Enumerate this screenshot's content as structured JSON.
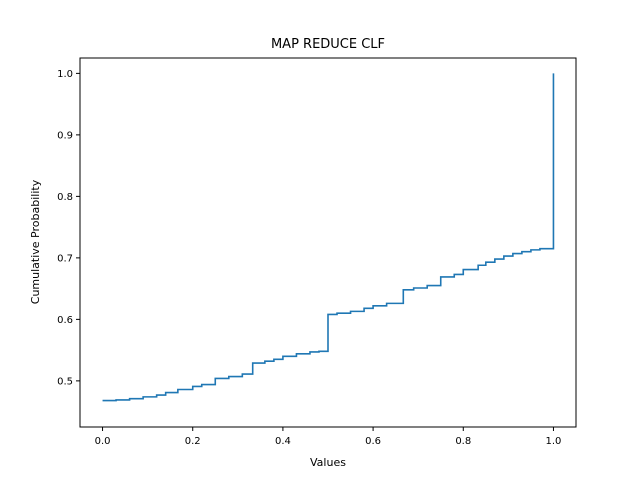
{
  "chart_data": {
    "type": "line",
    "title": "MAP REDUCE CLF",
    "xlabel": "Values",
    "ylabel": "Cumulative Probability",
    "xlim": [
      -0.05,
      1.05
    ],
    "ylim": [
      0.425,
      1.025
    ],
    "x_ticks": [
      0.0,
      0.2,
      0.4,
      0.6,
      0.8,
      1.0
    ],
    "x_tick_labels": [
      "0.0",
      "0.2",
      "0.4",
      "0.6",
      "0.8",
      "1.0"
    ],
    "y_ticks": [
      0.5,
      0.6,
      0.7,
      0.8,
      0.9,
      1.0
    ],
    "y_tick_labels": [
      "0.5",
      "0.6",
      "0.7",
      "0.8",
      "0.9",
      "1.0"
    ],
    "grid": false,
    "legend": "none",
    "series": [
      {
        "color": "#1f77b4",
        "step": "post",
        "x": [
          0.0,
          0.03,
          0.06,
          0.09,
          0.12,
          0.14,
          0.167,
          0.2,
          0.22,
          0.25,
          0.28,
          0.31,
          0.333,
          0.36,
          0.38,
          0.4,
          0.43,
          0.46,
          0.48,
          0.5,
          0.52,
          0.55,
          0.58,
          0.6,
          0.63,
          0.667,
          0.69,
          0.72,
          0.75,
          0.78,
          0.8,
          0.833,
          0.85,
          0.87,
          0.89,
          0.91,
          0.93,
          0.95,
          0.97,
          0.99,
          1.0,
          1.0
        ],
        "y": [
          0.468,
          0.469,
          0.471,
          0.474,
          0.477,
          0.481,
          0.486,
          0.491,
          0.494,
          0.504,
          0.507,
          0.511,
          0.529,
          0.532,
          0.535,
          0.54,
          0.544,
          0.547,
          0.548,
          0.608,
          0.61,
          0.613,
          0.618,
          0.622,
          0.626,
          0.648,
          0.651,
          0.655,
          0.669,
          0.673,
          0.681,
          0.688,
          0.693,
          0.698,
          0.703,
          0.707,
          0.71,
          0.713,
          0.715,
          0.715,
          0.715,
          1.0
        ]
      }
    ]
  }
}
